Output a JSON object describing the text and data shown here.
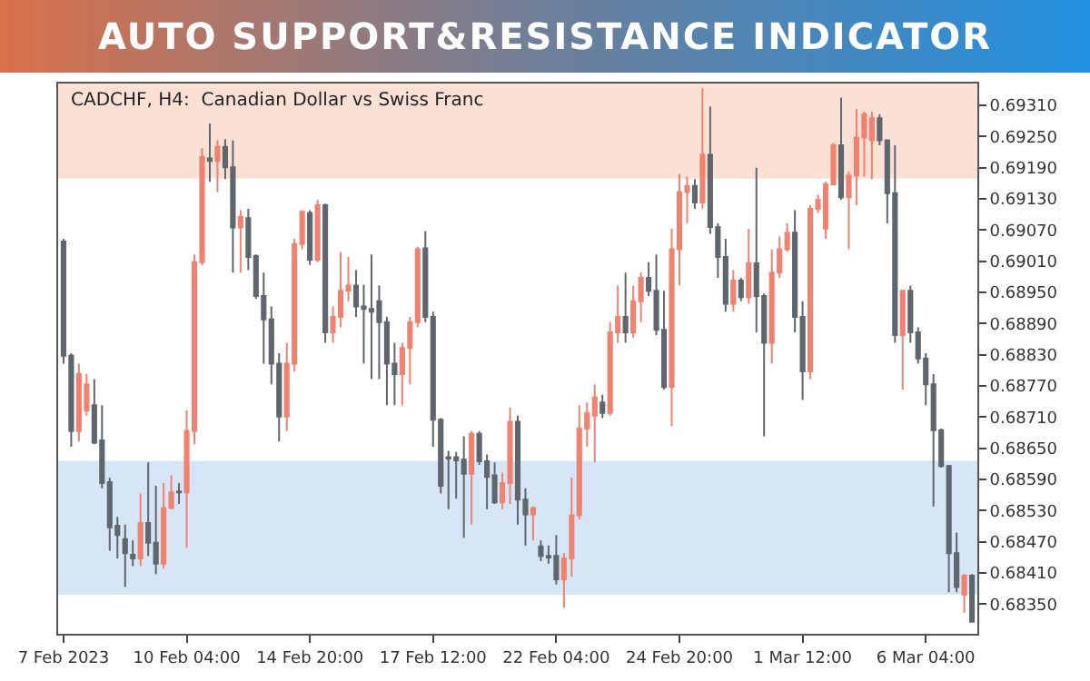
{
  "chart_data": {
    "type": "candlestick",
    "title": "AUTO SUPPORT&RESISTANCE INDICATOR",
    "subtitle": "CADCHF, H4:  Canadian Dollar vs Swiss Franc",
    "categories": [
      "7 Feb 2023",
      null,
      null,
      null,
      null,
      null,
      null,
      null,
      null,
      null,
      null,
      null,
      null,
      null,
      null,
      null,
      "10 Feb 04:00",
      null,
      null,
      null,
      null,
      null,
      null,
      null,
      null,
      null,
      null,
      null,
      null,
      null,
      null,
      null,
      "14 Feb 20:00",
      null,
      null,
      null,
      null,
      null,
      null,
      null,
      null,
      null,
      null,
      null,
      null,
      null,
      null,
      null,
      "17 Feb 12:00",
      null,
      null,
      null,
      null,
      null,
      null,
      null,
      null,
      null,
      null,
      null,
      null,
      null,
      null,
      null,
      "22 Feb 04:00",
      null,
      null,
      null,
      null,
      null,
      null,
      null,
      null,
      null,
      null,
      null,
      null,
      null,
      null,
      null,
      "24 Feb 20:00",
      null,
      null,
      null,
      null,
      null,
      null,
      null,
      null,
      null,
      null,
      null,
      null,
      null,
      null,
      null,
      "1 Mar 12:00",
      null,
      null,
      null,
      null,
      null,
      null,
      null,
      null,
      null,
      null,
      null,
      null,
      null,
      null,
      null,
      "6 Mar 04:00",
      null,
      null,
      null,
      null,
      null,
      null
    ],
    "ohlc": [
      [
        0.69048,
        0.69053,
        0.68813,
        0.68828
      ],
      [
        0.68828,
        0.68833,
        0.68653,
        0.68683
      ],
      [
        0.68683,
        0.68813,
        0.68663,
        0.68793
      ],
      [
        0.68723,
        0.68793,
        0.68713,
        0.68773
      ],
      [
        0.68733,
        0.68783,
        0.68658,
        0.68661
      ],
      [
        0.68665,
        0.68733,
        0.68573,
        0.68583
      ],
      [
        0.68585,
        0.68593,
        0.68453,
        0.68498
      ],
      [
        0.68501,
        0.68518,
        0.68438,
        0.68483
      ],
      [
        0.68475,
        0.68503,
        0.68383,
        0.68448
      ],
      [
        0.68445,
        0.68473,
        0.68423,
        0.68438
      ],
      [
        0.68438,
        0.68563,
        0.68423,
        0.68506
      ],
      [
        0.68506,
        0.68623,
        0.68443,
        0.68468
      ],
      [
        0.68468,
        0.68578,
        0.68408,
        0.68428
      ],
      [
        0.68428,
        0.68583,
        0.68418,
        0.68535
      ],
      [
        0.68535,
        0.68598,
        0.68533,
        0.68565
      ],
      [
        0.68567,
        0.68583,
        0.68543,
        0.68565
      ],
      [
        0.68565,
        0.68723,
        0.68458,
        0.68683
      ],
      [
        0.68683,
        0.69023,
        0.68658,
        0.69008
      ],
      [
        0.69008,
        0.69228,
        0.69003,
        0.69211
      ],
      [
        0.69208,
        0.69275,
        0.69163,
        0.69203
      ],
      [
        0.69203,
        0.69243,
        0.69143,
        0.6923
      ],
      [
        0.6923,
        0.69245,
        0.69168,
        0.69191
      ],
      [
        0.69191,
        0.69243,
        0.68988,
        0.69075
      ],
      [
        0.69075,
        0.69108,
        0.68988,
        0.69095
      ],
      [
        0.69093,
        0.69111,
        0.68993,
        0.69018
      ],
      [
        0.6902,
        0.69023,
        0.68938,
        0.68943
      ],
      [
        0.68943,
        0.68988,
        0.68813,
        0.68898
      ],
      [
        0.68898,
        0.68923,
        0.68773,
        0.68813
      ],
      [
        0.68813,
        0.68833,
        0.68663,
        0.68711
      ],
      [
        0.68711,
        0.68853,
        0.68683,
        0.68813
      ],
      [
        0.68813,
        0.69053,
        0.68798,
        0.69043
      ],
      [
        0.69043,
        0.69108,
        0.69033,
        0.69105
      ],
      [
        0.69103,
        0.69108,
        0.69003,
        0.69013
      ],
      [
        0.69013,
        0.69128,
        0.69008,
        0.69118
      ],
      [
        0.69118,
        0.69121,
        0.68853,
        0.68873
      ],
      [
        0.68873,
        0.68923,
        0.68853,
        0.68903
      ],
      [
        0.68903,
        0.69028,
        0.68883,
        0.68953
      ],
      [
        0.68953,
        0.69018,
        0.68933,
        0.68963
      ],
      [
        0.68963,
        0.68993,
        0.68903,
        0.68923
      ],
      [
        0.68923,
        0.68965,
        0.68813,
        0.68918
      ],
      [
        0.68918,
        0.69023,
        0.68783,
        0.68913
      ],
      [
        0.68933,
        0.68963,
        0.68783,
        0.68893
      ],
      [
        0.68893,
        0.68903,
        0.68733,
        0.68813
      ],
      [
        0.68813,
        0.68853,
        0.68733,
        0.68793
      ],
      [
        0.68793,
        0.68853,
        0.68733,
        0.68843
      ],
      [
        0.68843,
        0.68903,
        0.68773,
        0.68893
      ],
      [
        0.68893,
        0.69038,
        0.68883,
        0.69033
      ],
      [
        0.69035,
        0.69068,
        0.68893,
        0.68903
      ],
      [
        0.68903,
        0.68913,
        0.68653,
        0.68705
      ],
      [
        0.68705,
        0.68708,
        0.68563,
        0.68578
      ],
      [
        0.68633,
        0.68645,
        0.68533,
        0.6863
      ],
      [
        0.68633,
        0.68643,
        0.68553,
        0.68627
      ],
      [
        0.68628,
        0.68673,
        0.68478,
        0.68601
      ],
      [
        0.68601,
        0.68683,
        0.68503,
        0.68678
      ],
      [
        0.68678,
        0.68683,
        0.68618,
        0.68625
      ],
      [
        0.68625,
        0.68638,
        0.68533,
        0.68595
      ],
      [
        0.68598,
        0.68623,
        0.68543,
        0.68546
      ],
      [
        0.68546,
        0.68603,
        0.68533,
        0.68583
      ],
      [
        0.68583,
        0.68728,
        0.68543,
        0.68701
      ],
      [
        0.68701,
        0.68713,
        0.68503,
        0.68551
      ],
      [
        0.68551,
        0.68573,
        0.68463,
        0.68523
      ],
      [
        0.68523,
        0.68538,
        0.68473,
        0.68535
      ],
      [
        0.68461,
        0.68473,
        0.68433,
        0.68443
      ],
      [
        0.68443,
        0.68463,
        0.68428,
        0.6844
      ],
      [
        0.68443,
        0.68483,
        0.68388,
        0.68398
      ],
      [
        0.68398,
        0.68448,
        0.68343,
        0.68438
      ],
      [
        0.68438,
        0.68593,
        0.68403,
        0.68521
      ],
      [
        0.68521,
        0.68733,
        0.68513,
        0.68688
      ],
      [
        0.68688,
        0.68738,
        0.68653,
        0.68718
      ],
      [
        0.68713,
        0.68773,
        0.68623,
        0.68748
      ],
      [
        0.68738,
        0.68753,
        0.68708,
        0.68718
      ],
      [
        0.68718,
        0.68893,
        0.68713,
        0.68873
      ],
      [
        0.68873,
        0.68963,
        0.68853,
        0.68903
      ],
      [
        0.68903,
        0.68988,
        0.68853,
        0.68873
      ],
      [
        0.68873,
        0.68963,
        0.68863,
        0.68933
      ],
      [
        0.68933,
        0.68988,
        0.68893,
        0.68978
      ],
      [
        0.68978,
        0.69008,
        0.68943,
        0.68953
      ],
      [
        0.68953,
        0.69023,
        0.68868,
        0.68878
      ],
      [
        0.68878,
        0.68953,
        0.68763,
        0.68768
      ],
      [
        0.68768,
        0.69073,
        0.68693,
        0.69033
      ],
      [
        0.69033,
        0.69178,
        0.68963,
        0.69143
      ],
      [
        0.69143,
        0.69173,
        0.69083,
        0.69155
      ],
      [
        0.69155,
        0.69168,
        0.69111,
        0.69123
      ],
      [
        0.69123,
        0.69343,
        0.69111,
        0.69215
      ],
      [
        0.69215,
        0.69308,
        0.69063,
        0.69076
      ],
      [
        0.69076,
        0.69083,
        0.68978,
        0.69018
      ],
      [
        0.69018,
        0.69053,
        0.68913,
        0.68928
      ],
      [
        0.68928,
        0.68993,
        0.68913,
        0.68973
      ],
      [
        0.68973,
        0.68978,
        0.68933,
        0.68941
      ],
      [
        0.68941,
        0.69073,
        0.68928,
        0.69006
      ],
      [
        0.69006,
        0.6919,
        0.68873,
        0.68943
      ],
      [
        0.68943,
        0.68948,
        0.68673,
        0.68853
      ],
      [
        0.68853,
        0.69033,
        0.68813,
        0.68988
      ],
      [
        0.68988,
        0.69058,
        0.68978,
        0.69033
      ],
      [
        0.69033,
        0.69083,
        0.69028,
        0.69065
      ],
      [
        0.69065,
        0.69108,
        0.68873,
        0.68903
      ],
      [
        0.68903,
        0.68933,
        0.68743,
        0.68798
      ],
      [
        0.68798,
        0.69118,
        0.68783,
        0.69111
      ],
      [
        0.69111,
        0.69138,
        0.69103,
        0.69128
      ],
      [
        0.69073,
        0.69163,
        0.69053,
        0.69158
      ],
      [
        0.69158,
        0.69238,
        0.69158,
        0.69233
      ],
      [
        0.69233,
        0.69325,
        0.69128,
        0.69133
      ],
      [
        0.69133,
        0.69183,
        0.69033,
        0.69175
      ],
      [
        0.69175,
        0.69303,
        0.69118,
        0.69248
      ],
      [
        0.69248,
        0.69298,
        0.69173,
        0.69293
      ],
      [
        0.69243,
        0.69298,
        0.69168,
        0.69285
      ],
      [
        0.69285,
        0.69293,
        0.69233,
        0.69243
      ],
      [
        0.69243,
        0.69243,
        0.69083,
        0.69141
      ],
      [
        0.69141,
        0.69233,
        0.68853,
        0.68868
      ],
      [
        0.68868,
        0.68953,
        0.68763,
        0.68953
      ],
      [
        0.68953,
        0.68963,
        0.68853,
        0.68873
      ],
      [
        0.68873,
        0.68883,
        0.68813,
        0.68823
      ],
      [
        0.68823,
        0.68833,
        0.68733,
        0.68773
      ],
      [
        0.68773,
        0.68793,
        0.68538,
        0.68685
      ],
      [
        0.68685,
        0.68688,
        0.68613,
        0.68616
      ],
      [
        0.68616,
        0.68618,
        0.68373,
        0.68448
      ],
      [
        0.68448,
        0.68488,
        0.68373,
        0.68383
      ],
      [
        0.68368,
        0.68408,
        0.68333,
        0.68405
      ],
      [
        0.68405,
        0.68408,
        0.68316,
        0.68316
      ]
    ],
    "colors": [
      "#5f666d",
      "#5f666d",
      "#ef8270",
      "#ef8270",
      "#5f666d",
      "#5f666d",
      "#5f666d",
      "#5f666d",
      "#5f666d",
      "#5f666d",
      "#ef8270",
      "#5f666d",
      "#5f666d",
      "#ef8270",
      "#ef8270",
      "#5f666d",
      "#ef8270",
      "#ef8270",
      "#ef8270",
      "#5f666d",
      "#ef8270",
      "#5f666d",
      "#5f666d",
      "#ef8270",
      "#5f666d",
      "#5f666d",
      "#5f666d",
      "#5f666d",
      "#5f666d",
      "#ef8270",
      "#ef8270",
      "#ef8270",
      "#5f666d",
      "#ef8270",
      "#5f666d",
      "#ef8270",
      "#ef8270",
      "#ef8270",
      "#5f666d",
      "#5f666d",
      "#5f666d",
      "#5f666d",
      "#5f666d",
      "#5f666d",
      "#ef8270",
      "#ef8270",
      "#ef8270",
      "#5f666d",
      "#5f666d",
      "#5f666d",
      "#5f666d",
      "#5f666d",
      "#5f666d",
      "#ef8270",
      "#5f666d",
      "#5f666d",
      "#5f666d",
      "#ef8270",
      "#ef8270",
      "#5f666d",
      "#5f666d",
      "#ef8270",
      "#5f666d",
      "#5f666d",
      "#5f666d",
      "#ef8270",
      "#ef8270",
      "#ef8270",
      "#ef8270",
      "#ef8270",
      "#5f666d",
      "#ef8270",
      "#ef8270",
      "#5f666d",
      "#ef8270",
      "#ef8270",
      "#5f666d",
      "#5f666d",
      "#5f666d",
      "#ef8270",
      "#ef8270",
      "#ef8270",
      "#5f666d",
      "#ef8270",
      "#5f666d",
      "#5f666d",
      "#5f666d",
      "#ef8270",
      "#5f666d",
      "#ef8270",
      "#5f666d",
      "#5f666d",
      "#ef8270",
      "#ef8270",
      "#ef8270",
      "#5f666d",
      "#5f666d",
      "#ef8270",
      "#ef8270",
      "#ef8270",
      "#ef8270",
      "#5f666d",
      "#ef8270",
      "#ef8270",
      "#ef8270",
      "#ef8270",
      "#5f666d",
      "#5f666d",
      "#5f666d",
      "#ef8270",
      "#5f666d",
      "#5f666d",
      "#5f666d",
      "#5f666d",
      "#5f666d",
      "#5f666d",
      "#5f666d",
      "#ef8270",
      "#5f666d"
    ],
    "ylim": [
      0.68293,
      0.69352
    ],
    "yticks": [
      {
        "value": 0.6835,
        "label": "0.68350"
      },
      {
        "value": 0.6841,
        "label": "0.68410"
      },
      {
        "value": 0.6847,
        "label": "0.68470"
      },
      {
        "value": 0.6853,
        "label": "0.68530"
      },
      {
        "value": 0.6859,
        "label": "0.68590"
      },
      {
        "value": 0.6865,
        "label": "0.68650"
      },
      {
        "value": 0.6871,
        "label": "0.68710"
      },
      {
        "value": 0.6877,
        "label": "0.68770"
      },
      {
        "value": 0.6883,
        "label": "0.68830"
      },
      {
        "value": 0.6889,
        "label": "0.68890"
      },
      {
        "value": 0.6895,
        "label": "0.68950"
      },
      {
        "value": 0.6901,
        "label": "0.69010"
      },
      {
        "value": 0.6907,
        "label": "0.69070"
      },
      {
        "value": 0.6913,
        "label": "0.69130"
      },
      {
        "value": 0.6919,
        "label": "0.69190"
      },
      {
        "value": 0.6925,
        "label": "0.69250"
      },
      {
        "value": 0.6931,
        "label": "0.69310"
      }
    ],
    "bands": [
      {
        "axis": "y",
        "from": 0.69169,
        "to": 0.69352,
        "color": "#fbe1d5"
      },
      {
        "axis": "y",
        "from": 0.68368,
        "to": 0.68626,
        "color": "#d6e6f7"
      }
    ]
  }
}
